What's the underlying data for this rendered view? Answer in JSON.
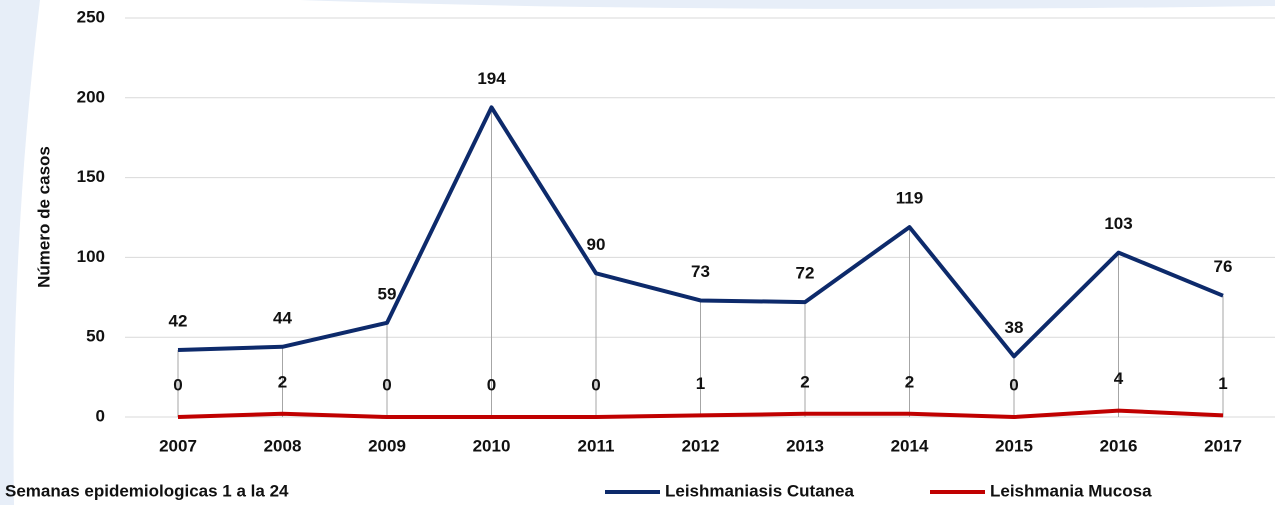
{
  "chart_data": {
    "type": "line",
    "y_label": "Número de casos",
    "footnote": "Semanas epidemiologicas 1 a la 24",
    "categories": [
      "2007",
      "2008",
      "2009",
      "2010",
      "2011",
      "2012",
      "2013",
      "2014",
      "2015",
      "2016",
      "2017"
    ],
    "series": [
      {
        "name": "Leishmaniasis Cutanea",
        "color": "#0d2a6b",
        "values": [
          42,
          44,
          59,
          194,
          90,
          73,
          72,
          119,
          38,
          103,
          76
        ]
      },
      {
        "name": "Leishmania Mucosa",
        "color": "#c00000",
        "values": [
          0,
          2,
          0,
          0,
          0,
          1,
          2,
          2,
          0,
          4,
          1
        ]
      }
    ],
    "ylim": [
      0,
      250
    ],
    "yticks": [
      0,
      50,
      100,
      150,
      200,
      250
    ],
    "grid": true,
    "drop_lines": true,
    "legend": "bottom"
  }
}
